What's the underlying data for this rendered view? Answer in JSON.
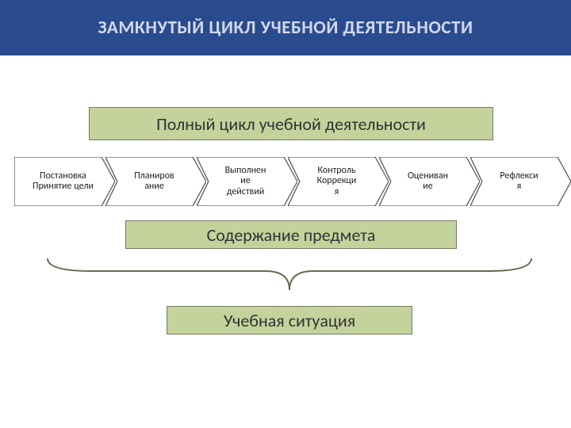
{
  "colors": {
    "title_bg": "#2a4b8d",
    "title_text": "#d0d8ec",
    "box_fill": "#c4d29c",
    "box_border": "#7a7a60",
    "chevron_fill": "#ffffff",
    "chevron_stroke": "#555555",
    "text": "#333333",
    "brace": "#6b6b52"
  },
  "fonts": {
    "title_size": 23,
    "box_size": 22,
    "chevron_size": 12
  },
  "title": "ЗАМКНУТЫЙ ЦИКЛ УЧЕБНОЙ ДЕЯТЕЛЬНОСТИ",
  "cycle_label": "Полный цикл учебной деятельности",
  "content_label": "Содержание предмета",
  "situation_label": "Учебная ситуация",
  "steps": [
    {
      "line1": "Постановка",
      "line2": "Принятие цели"
    },
    {
      "line1": "Планиров",
      "line2": "ание"
    },
    {
      "line1": "Выполнен",
      "line2": "ие",
      "line3": "действий"
    },
    {
      "line1": "Контроль",
      "line2": "Коррекци",
      "line3": "я"
    },
    {
      "line1": "Оцениван",
      "line2": "ие"
    },
    {
      "line1": "Рефлекси",
      "line2": "я"
    }
  ]
}
